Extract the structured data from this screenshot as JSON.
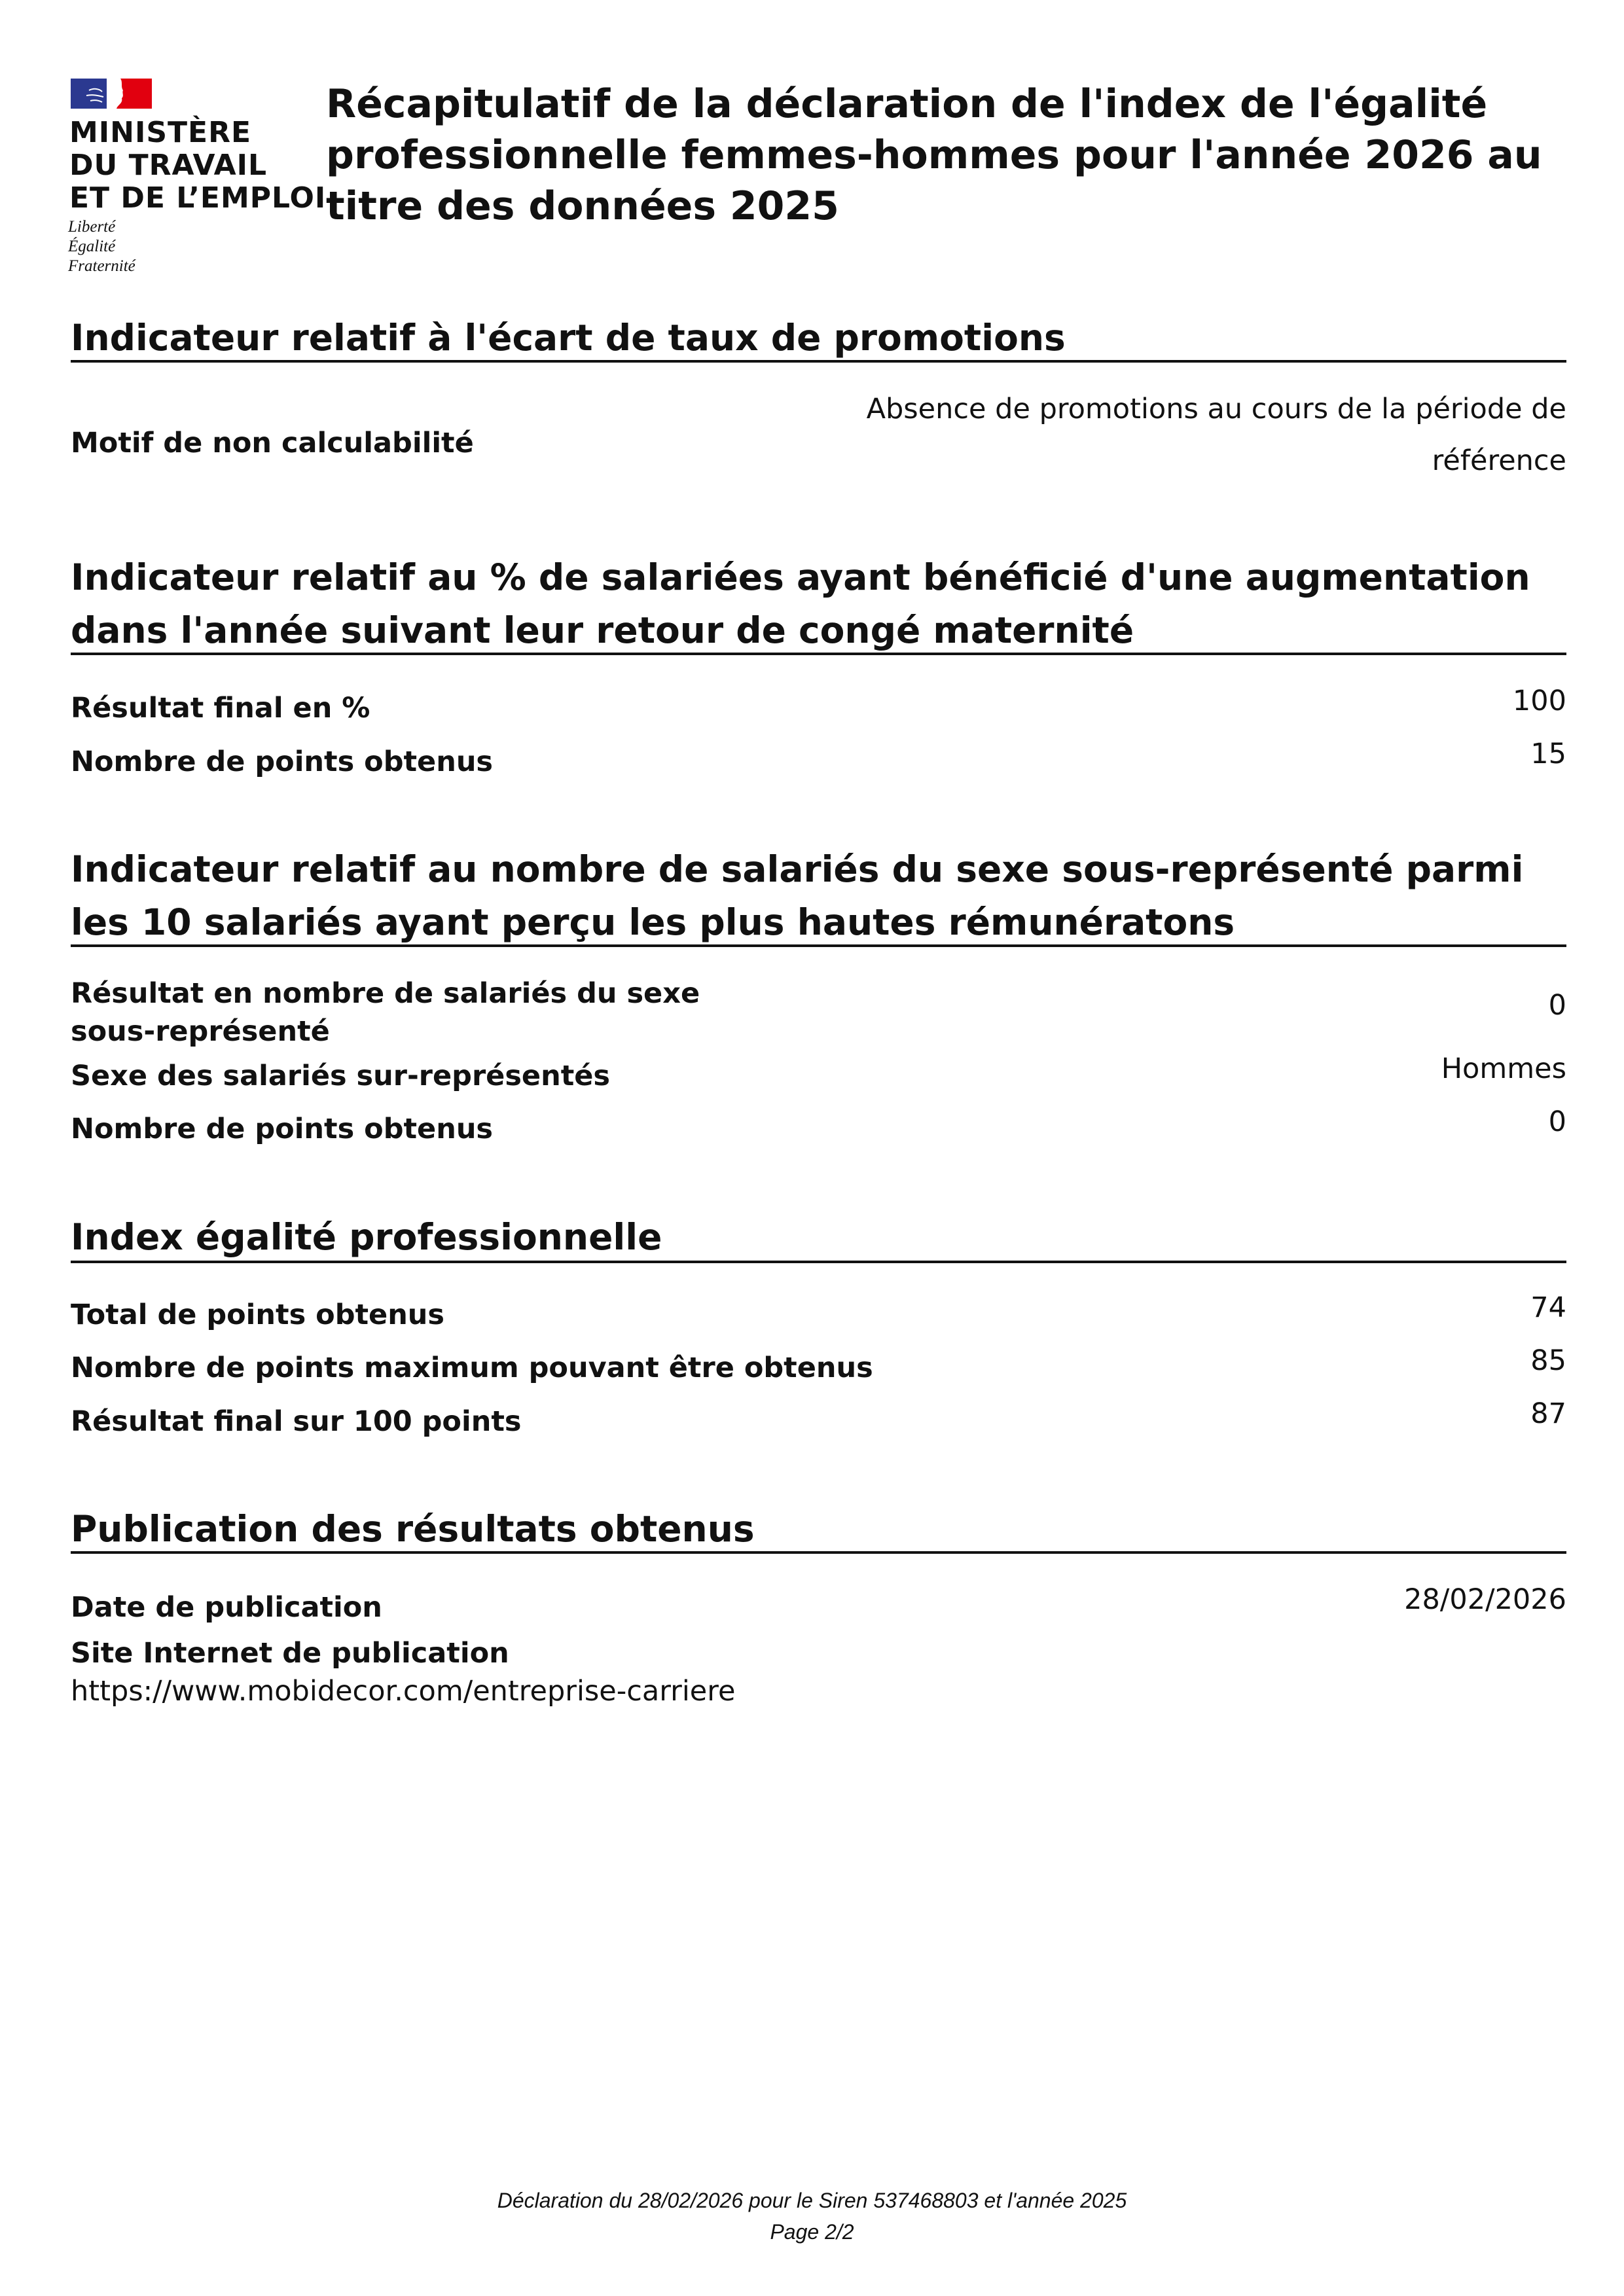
{
  "logo": {
    "lines": [
      "MINISTÈRE",
      "DU TRAVAIL",
      "ET DE L’EMPLOI"
    ],
    "motto": [
      "Liberté",
      "Égalité",
      "Fraternité"
    ],
    "colors": {
      "blue": "#2B3990",
      "red": "#E1000F"
    }
  },
  "title": "Récapitulatif de la déclaration de l'index de l'égalité professionnelle femmes-hommes pour l'année 2026 au titre des données 2025",
  "promotions": {
    "heading": "Indicateur relatif à l'écart de taux de promotions",
    "motif_label": "Motif de non calculabilité",
    "motif_value_line1": "Absence de promotions au cours de la période de",
    "motif_value_line2": "référence"
  },
  "maternite": {
    "heading": "Indicateur relatif au % de salariées ayant bénéficié d'une augmentation dans l'année suivant leur retour de congé maternité",
    "result_label": "Résultat final en %",
    "result_value": "100",
    "points_label": "Nombre de points obtenus",
    "points_value": "15"
  },
  "hautes_remunerations": {
    "heading": "Indicateur relatif au nombre de salariés du sexe sous-représenté parmi les 10 salariés ayant perçu les plus hautes rémunératons",
    "result_label_line1": "Résultat en nombre de salariés du sexe",
    "result_label_line2": "sous-représenté",
    "result_value": "0",
    "sexe_label": "Sexe des salariés sur-représentés",
    "sexe_value": "Hommes",
    "points_label": "Nombre de points obtenus",
    "points_value": "0"
  },
  "index": {
    "heading": "Index égalité professionnelle",
    "total_label": "Total de points obtenus",
    "total_value": "74",
    "max_label": "Nombre de points maximum pouvant être obtenus",
    "max_value": "85",
    "final_label": "Résultat final sur 100 points",
    "final_value": "87"
  },
  "publication": {
    "heading": "Publication des résultats obtenus",
    "date_label": "Date de publication",
    "date_value": "28/02/2026",
    "site_label": "Site Internet de publication",
    "site_value": "https://www.mobidecor.com/entreprise-carriere"
  },
  "footer": {
    "line1": "Déclaration du 28/02/2026 pour le Siren 537468803 et l'année 2025",
    "line2": "Page 2/2"
  }
}
